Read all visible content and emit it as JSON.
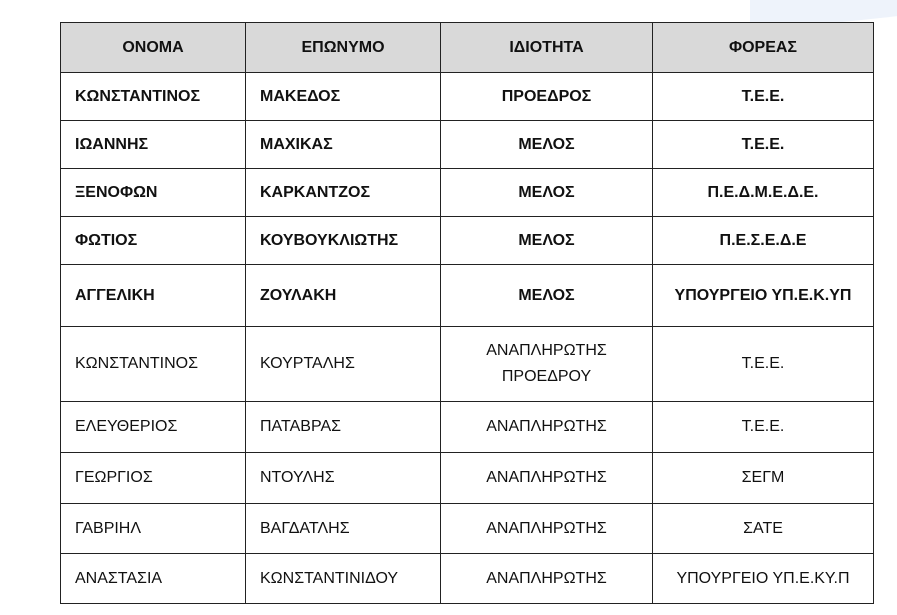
{
  "headers": [
    "ΟΝΟΜΑ",
    "ΕΠΩΝΥΜΟ",
    "ΙΔΙΟΤΗΤΑ",
    "ΦΟΡΕΑΣ"
  ],
  "rows": [
    {
      "name": "ΚΩΝΣΤΑΝΤΙΝΟΣ",
      "surname": "ΜΑΚΕΔΟΣ",
      "role": "ΠΡΟΕΔΡΟΣ",
      "org": "Τ.Ε.Ε.",
      "bold": true
    },
    {
      "name": "ΙΩΑΝΝΗΣ",
      "surname": "ΜΑΧΙΚΑΣ",
      "role": "ΜΕΛΟΣ",
      "org": "Τ.Ε.Ε.",
      "bold": true
    },
    {
      "name": "ΞΕΝΟΦΩΝ",
      "surname": "ΚΑΡΚΑΝΤΖΟΣ",
      "role": "ΜΕΛΟΣ",
      "org": "Π.Ε.Δ.Μ.Ε.Δ.Ε.",
      "bold": true
    },
    {
      "name": "ΦΩΤΙΟΣ",
      "surname": "ΚΟΥΒΟΥΚΛΙΩΤΗΣ",
      "role": "ΜΕΛΟΣ",
      "org": "Π.Ε.Σ.Ε.Δ.Ε",
      "bold": true
    },
    {
      "name": "ΑΓΓΕΛΙΚΗ",
      "surname": "ΖΟΥΛΑΚΗ",
      "role": "ΜΕΛΟΣ",
      "org": "ΥΠΟΥΡΓΕΙΟ ΥΠ.Ε.Κ.ΥΠ",
      "bold": true
    },
    {
      "name": "ΚΩΝΣΤΑΝΤΙΝΟΣ",
      "surname": "ΚΟΥΡΤΑΛΗΣ",
      "role": "ΑΝΑΠΛΗΡΩΤΗΣ ΠΡΟΕΔΡΟΥ",
      "org": "Τ.Ε.Ε.",
      "bold": false
    },
    {
      "name": "ΕΛΕΥΘΕΡΙΟΣ",
      "surname": "ΠΑΤΑΒΡΑΣ",
      "role": "ΑΝΑΠΛΗΡΩΤΗΣ",
      "org": "Τ.Ε.Ε.",
      "bold": false
    },
    {
      "name": "ΓΕΩΡΓΙΟΣ",
      "surname": "ΝΤΟΥΛΗΣ",
      "role": "ΑΝΑΠΛΗΡΩΤΗΣ",
      "org": "ΣΕΓΜ",
      "bold": false
    },
    {
      "name": "ΓΑΒΡΙΗΛ",
      "surname": "ΒΑΓΔΑΤΛΗΣ",
      "role": "ΑΝΑΠΛΗΡΩΤΗΣ",
      "org": "ΣΑΤΕ",
      "bold": false
    },
    {
      "name": "ΑΝΑΣΤΑΣΙΑ",
      "surname": "ΚΩΝΣΤΑΝΤΙΝΙΔΟΥ",
      "role": "ΑΝΑΠΛΗΡΩΤΗΣ",
      "org": "ΥΠΟΥΡΓΕΙΟ ΥΠ.Ε.ΚΥ.Π",
      "bold": false
    }
  ]
}
